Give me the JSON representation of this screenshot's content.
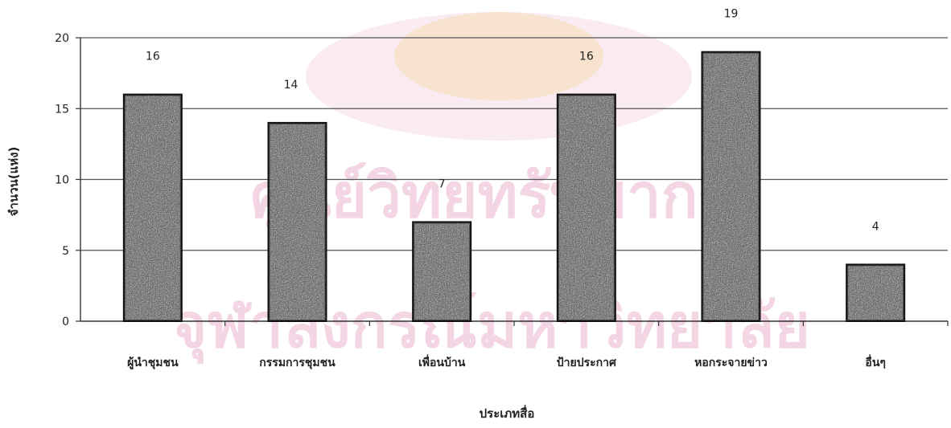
{
  "chart_data": {
    "type": "bar",
    "categories": [
      "ผู้นำชุมชน",
      "กรรมการชุมชน",
      "เพื่อนบ้าน",
      "ป้ายประกาศ",
      "หอกระจายข่าว",
      "อื่นๆ"
    ],
    "values": [
      16,
      14,
      7,
      16,
      19,
      4
    ],
    "data_labels": [
      "16",
      "14",
      "7",
      "16",
      "19",
      "4"
    ],
    "xlabel": "ประเภทสื่อ",
    "ylabel": "จำนวน(แห่ง)",
    "ylim": [
      0,
      20
    ],
    "yticks": [
      "0",
      "5",
      "10",
      "15",
      "20"
    ],
    "grid": true,
    "bar_color": "#4a4a4a"
  },
  "watermark": {
    "line1": "ศูนย์วิทยทรัพยากร",
    "line2": "จุฬาลงกรณ์มหาวิทยาลัย",
    "color": "#d76a9e"
  }
}
